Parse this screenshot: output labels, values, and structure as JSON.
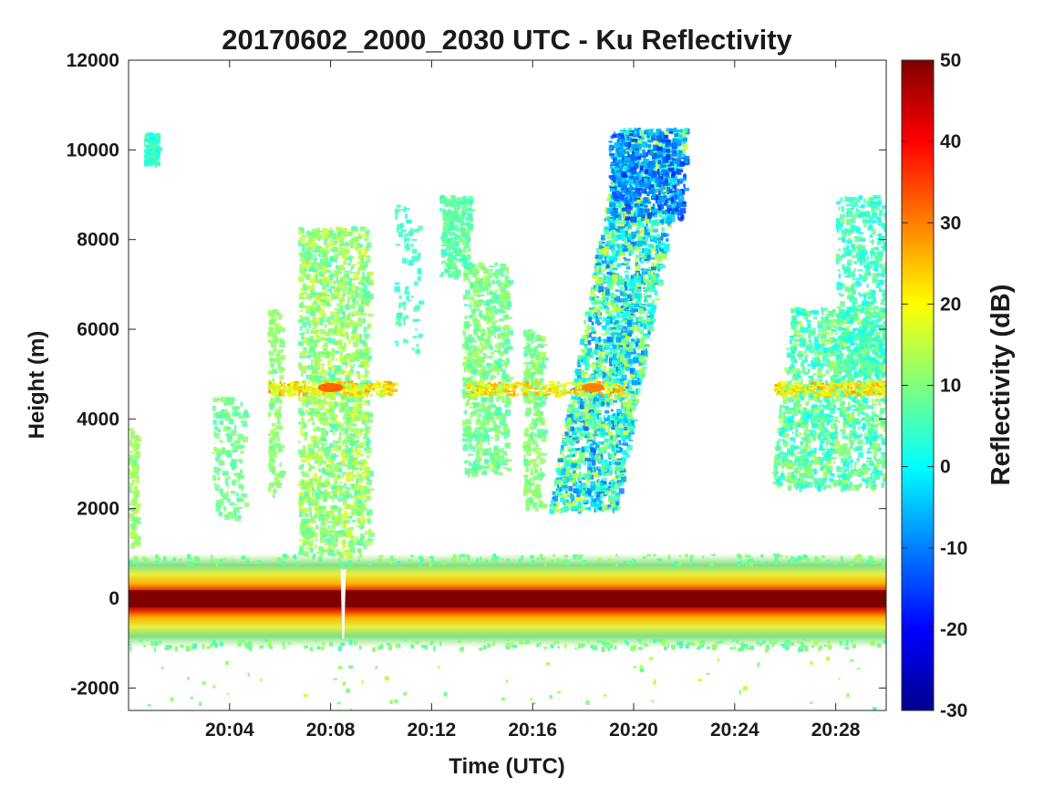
{
  "chart_data": {
    "type": "heatmap",
    "title": "20170602_2000_2030 UTC - Ku Reflectivity",
    "xlabel": "Time (UTC)",
    "ylabel": "Height (m)",
    "colorbar_label": "Reflectivity (dB)",
    "colormap": "jet",
    "xlim": [
      "20:00",
      "20:30"
    ],
    "ylim": [
      -2500,
      12000
    ],
    "clim": [
      -30,
      50
    ],
    "x_ticks": [
      "20:04",
      "20:08",
      "20:12",
      "20:16",
      "20:20",
      "20:24",
      "20:28"
    ],
    "y_ticks": [
      "-2000",
      "0",
      "2000",
      "4000",
      "6000",
      "8000",
      "10000",
      "12000"
    ],
    "colorbar_ticks": [
      "-30",
      "-20",
      "-10",
      "0",
      "10",
      "20",
      "30",
      "40",
      "50"
    ],
    "features": [
      {
        "name": "surface return",
        "time_range": [
          "20:00",
          "20:30"
        ],
        "height_range": [
          -1000,
          1000
        ],
        "peak_dB": 50
      },
      {
        "name": "bright band",
        "height": 4700,
        "peak_dB": 30
      },
      {
        "name": "cloud/precip column",
        "time_range": [
          "20:07",
          "20:09"
        ],
        "height_range": [
          1000,
          8300
        ],
        "dB_range": [
          5,
          20
        ]
      },
      {
        "name": "cloud/precip column",
        "time_range": [
          "20:13",
          "20:15"
        ],
        "height_range": [
          2500,
          7500
        ],
        "dB_range": [
          5,
          15
        ]
      },
      {
        "name": "slanted ice cloud",
        "time_range": [
          "20:16",
          "20:23"
        ],
        "height_range": [
          2000,
          10500
        ],
        "dB_range": [
          -15,
          20
        ]
      },
      {
        "name": "cloud/precip region",
        "time_range": [
          "20:25",
          "20:30"
        ],
        "height_range": [
          2500,
          9000
        ],
        "dB_range": [
          0,
          15
        ]
      },
      {
        "name": "cirrus",
        "time_range": [
          "20:00",
          "20:03"
        ],
        "height_range": [
          9500,
          10500
        ],
        "dB_range": [
          0,
          8
        ]
      }
    ]
  }
}
